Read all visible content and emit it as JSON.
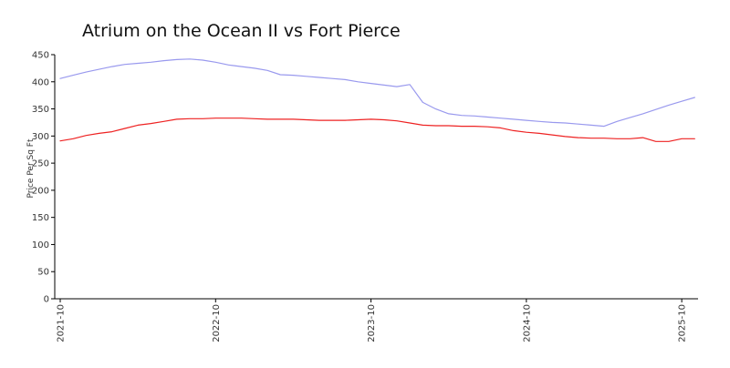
{
  "chart_data": {
    "type": "line",
    "title": "Atrium on the Ocean II vs Fort Pierce",
    "xlabel": "",
    "ylabel": "Price Per Sq Ft",
    "ylim": [
      0,
      450
    ],
    "yticks": [
      0,
      50,
      100,
      150,
      200,
      250,
      300,
      350,
      400,
      450
    ],
    "xlim": [
      "2021-10",
      "2025-11"
    ],
    "xticks": [
      "2021-10",
      "2022-10",
      "2023-10",
      "2024-10",
      "2025-10"
    ],
    "grid": false,
    "series": [
      {
        "color": "#9999ee",
        "points": [
          [
            "2021-10",
            406
          ],
          [
            "2021-11",
            412
          ],
          [
            "2021-12",
            418
          ],
          [
            "2022-01",
            423
          ],
          [
            "2022-02",
            428
          ],
          [
            "2022-03",
            432
          ],
          [
            "2022-04",
            434
          ],
          [
            "2022-05",
            436
          ],
          [
            "2022-06",
            439
          ],
          [
            "2022-07",
            441
          ],
          [
            "2022-08",
            442
          ],
          [
            "2022-09",
            440
          ],
          [
            "2022-10",
            436
          ],
          [
            "2022-11",
            431
          ],
          [
            "2022-12",
            428
          ],
          [
            "2023-01",
            425
          ],
          [
            "2023-02",
            421
          ],
          [
            "2023-03",
            413
          ],
          [
            "2023-04",
            412
          ],
          [
            "2023-05",
            410
          ],
          [
            "2023-06",
            408
          ],
          [
            "2023-07",
            406
          ],
          [
            "2023-08",
            404
          ],
          [
            "2023-09",
            400
          ],
          [
            "2023-10",
            397
          ],
          [
            "2023-11",
            394
          ],
          [
            "2023-12",
            391
          ],
          [
            "2024-01",
            395
          ],
          [
            "2024-02",
            362
          ],
          [
            "2024-03",
            350
          ],
          [
            "2024-04",
            341
          ],
          [
            "2024-05",
            338
          ],
          [
            "2024-06",
            337
          ],
          [
            "2024-07",
            335
          ],
          [
            "2024-08",
            333
          ],
          [
            "2024-09",
            331
          ],
          [
            "2024-10",
            329
          ],
          [
            "2024-11",
            327
          ],
          [
            "2024-12",
            325
          ],
          [
            "2025-01",
            324
          ],
          [
            "2025-02",
            322
          ],
          [
            "2025-03",
            320
          ],
          [
            "2025-04",
            318
          ],
          [
            "2025-05",
            327
          ],
          [
            "2025-06",
            334
          ],
          [
            "2025-07",
            341
          ],
          [
            "2025-08",
            349
          ],
          [
            "2025-09",
            357
          ],
          [
            "2025-10",
            364
          ],
          [
            "2025-11",
            371
          ]
        ]
      },
      {
        "color": "#ee2222",
        "points": [
          [
            "2021-10",
            291
          ],
          [
            "2021-11",
            295
          ],
          [
            "2021-12",
            301
          ],
          [
            "2022-01",
            305
          ],
          [
            "2022-02",
            308
          ],
          [
            "2022-03",
            314
          ],
          [
            "2022-04",
            320
          ],
          [
            "2022-05",
            323
          ],
          [
            "2022-06",
            327
          ],
          [
            "2022-07",
            331
          ],
          [
            "2022-08",
            332
          ],
          [
            "2022-09",
            332
          ],
          [
            "2022-10",
            333
          ],
          [
            "2022-11",
            333
          ],
          [
            "2022-12",
            333
          ],
          [
            "2023-01",
            332
          ],
          [
            "2023-02",
            331
          ],
          [
            "2023-03",
            331
          ],
          [
            "2023-04",
            331
          ],
          [
            "2023-05",
            330
          ],
          [
            "2023-06",
            329
          ],
          [
            "2023-07",
            329
          ],
          [
            "2023-08",
            329
          ],
          [
            "2023-09",
            330
          ],
          [
            "2023-10",
            331
          ],
          [
            "2023-11",
            330
          ],
          [
            "2023-12",
            328
          ],
          [
            "2024-01",
            324
          ],
          [
            "2024-02",
            320
          ],
          [
            "2024-03",
            319
          ],
          [
            "2024-04",
            319
          ],
          [
            "2024-05",
            318
          ],
          [
            "2024-06",
            318
          ],
          [
            "2024-07",
            317
          ],
          [
            "2024-08",
            315
          ],
          [
            "2024-09",
            310
          ],
          [
            "2024-10",
            307
          ],
          [
            "2024-11",
            305
          ],
          [
            "2024-12",
            302
          ],
          [
            "2025-01",
            299
          ],
          [
            "2025-02",
            297
          ],
          [
            "2025-03",
            296
          ],
          [
            "2025-04",
            296
          ],
          [
            "2025-05",
            295
          ],
          [
            "2025-06",
            295
          ],
          [
            "2025-07",
            297
          ],
          [
            "2025-08",
            290
          ],
          [
            "2025-09",
            290
          ],
          [
            "2025-10",
            295
          ],
          [
            "2025-11",
            295
          ]
        ]
      }
    ]
  }
}
